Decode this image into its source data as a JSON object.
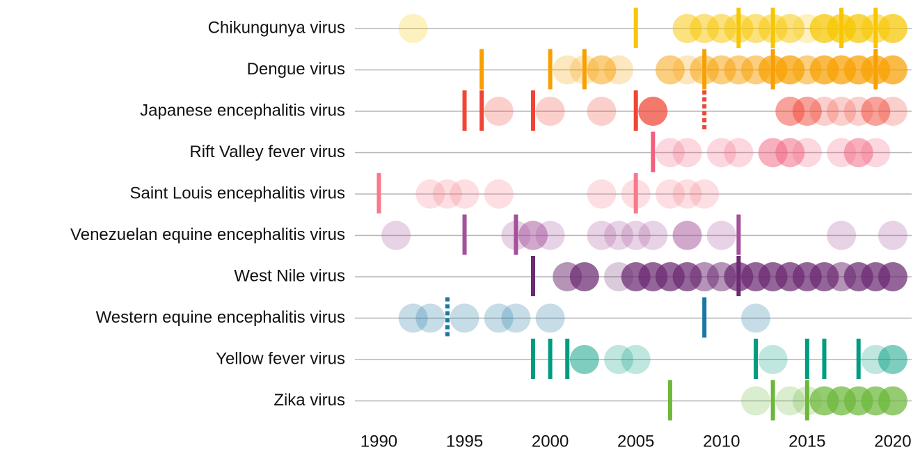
{
  "chart_data": {
    "type": "timeline",
    "xlim": [
      1988.6,
      2021.1
    ],
    "xticks": [
      1990,
      1995,
      2000,
      2005,
      2010,
      2015,
      2020
    ],
    "series": [
      {
        "name": "Chikungunya virus",
        "color": "#f7c600",
        "years": [
          1992,
          2008,
          2009,
          2010,
          2011,
          2012,
          2013,
          2014,
          2015,
          2016,
          2017,
          2018,
          2019,
          2020
        ],
        "levels": [
          1,
          2,
          2,
          2,
          2,
          2,
          2,
          2,
          1,
          3,
          3,
          3,
          2,
          3
        ],
        "events": [
          2005,
          2011,
          2013,
          2017,
          2019
        ],
        "dashed_events": []
      },
      {
        "name": "Dengue virus",
        "color": "#f8a000",
        "years": [
          2001,
          2002,
          2003,
          2004,
          2007,
          2008,
          2009,
          2010,
          2011,
          2012,
          2013,
          2014,
          2015,
          2016,
          2017,
          2018,
          2019,
          2020
        ],
        "levels": [
          1,
          1,
          2,
          1,
          2,
          1,
          2,
          2,
          2,
          2,
          3,
          3,
          2,
          3,
          3,
          3,
          3,
          3
        ],
        "events": [
          1996,
          2000,
          2002,
          2009,
          2013,
          2019
        ],
        "dashed_events": []
      },
      {
        "name": "Japanese encephalitis virus",
        "color": "#f04535",
        "years": [
          1997,
          2000,
          2003,
          2006,
          2014,
          2015,
          2016,
          2017,
          2018,
          2019,
          2020
        ],
        "levels": [
          1,
          1,
          1,
          3,
          2,
          2,
          1,
          1,
          1,
          2,
          1
        ],
        "events": [
          1995,
          1996,
          1999,
          2005
        ],
        "dashed_events": [
          2009
        ]
      },
      {
        "name": "Rift Valley fever virus",
        "color": "#f2607e",
        "years": [
          2007,
          2008,
          2010,
          2011,
          2013,
          2014,
          2015,
          2017,
          2018,
          2019
        ],
        "levels": [
          1,
          1,
          1,
          1,
          2,
          2,
          1,
          1,
          2,
          1
        ],
        "events": [
          2006
        ],
        "dashed_events": []
      },
      {
        "name": "Saint Louis encephalitis virus",
        "color": "#f77a8c",
        "years": [
          1993,
          1994,
          1995,
          1997,
          2003,
          2005,
          2007,
          2008,
          2009
        ],
        "levels": [
          1,
          1,
          1,
          1,
          1,
          1,
          1,
          1,
          1
        ],
        "events": [
          1990,
          2005
        ],
        "dashed_events": []
      },
      {
        "name": "Venezuelan equine encephalitis virus",
        "color": "#a4509a",
        "years": [
          1991,
          1998,
          1999,
          2000,
          2003,
          2004,
          2005,
          2006,
          2008,
          2010,
          2017,
          2020
        ],
        "levels": [
          1,
          1,
          2,
          1,
          1,
          1,
          1,
          1,
          2,
          1,
          1,
          1
        ],
        "events": [
          1995,
          1998,
          2011
        ],
        "dashed_events": []
      },
      {
        "name": "West Nile virus",
        "color": "#6b2a72",
        "years": [
          2001,
          2002,
          2004,
          2005,
          2006,
          2007,
          2008,
          2009,
          2010,
          2011,
          2012,
          2013,
          2014,
          2015,
          2016,
          2017,
          2018,
          2019,
          2020
        ],
        "levels": [
          2,
          3,
          1,
          3,
          3,
          3,
          3,
          2,
          2,
          3,
          3,
          3,
          3,
          3,
          3,
          2,
          3,
          3,
          3
        ],
        "events": [
          1999,
          2011
        ],
        "dashed_events": []
      },
      {
        "name": "Western equine encephalitis virus",
        "color": "#1a78a4",
        "years": [
          1992,
          1993,
          1995,
          1997,
          1998,
          2000,
          2012
        ],
        "levels": [
          1,
          1,
          1,
          1,
          1,
          1,
          1
        ],
        "events": [
          2009
        ],
        "dashed_events": [
          1994
        ]
      },
      {
        "name": "Yellow fever virus",
        "color": "#009c80",
        "years": [
          2002,
          2004,
          2005,
          2013,
          2019,
          2020
        ],
        "levels": [
          2,
          1,
          1,
          1,
          1,
          2
        ],
        "events": [
          1999,
          2000,
          2001,
          2012,
          2015,
          2016,
          2018
        ],
        "dashed_events": []
      },
      {
        "name": "Zika virus",
        "color": "#6cb83a",
        "years": [
          2012,
          2014,
          2015,
          2016,
          2017,
          2018,
          2019,
          2020
        ],
        "levels": [
          1,
          1,
          1,
          3,
          3,
          3,
          3,
          3
        ],
        "events": [
          2007,
          2013,
          2015
        ],
        "dashed_events": []
      }
    ]
  }
}
